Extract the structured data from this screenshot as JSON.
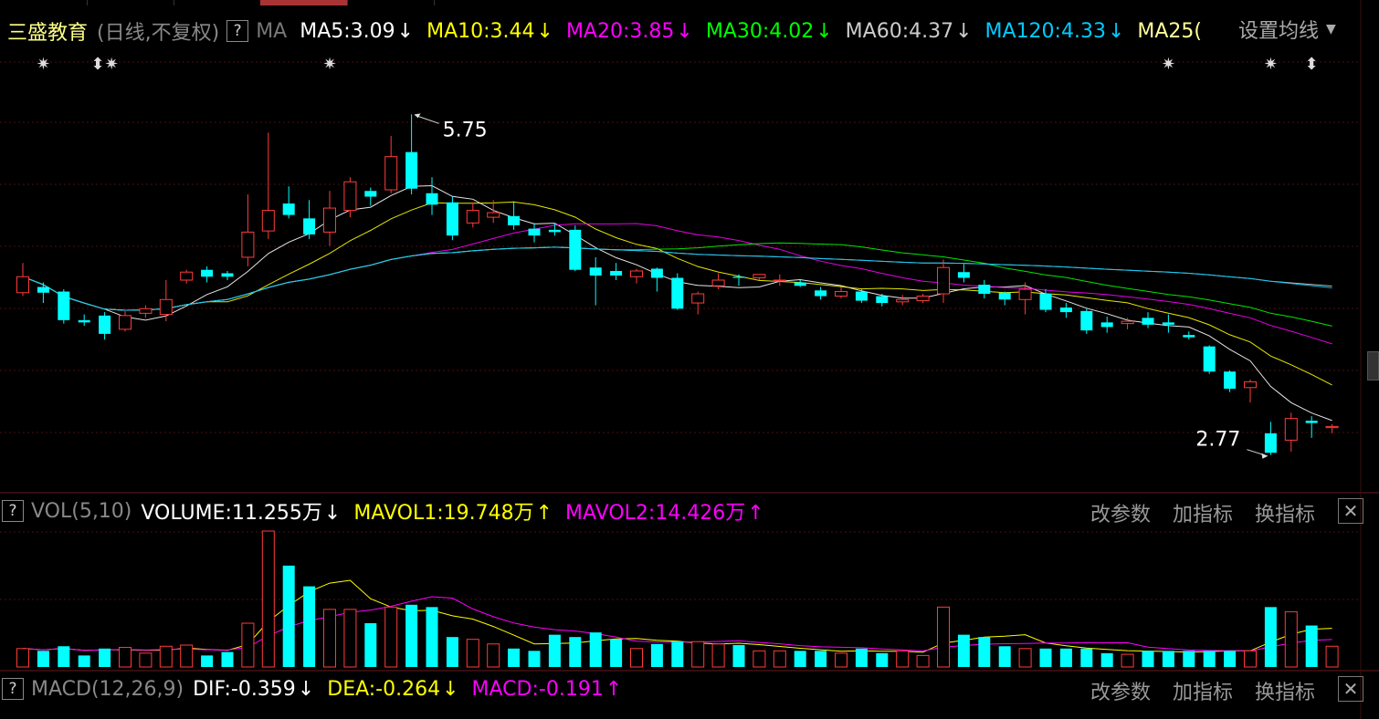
{
  "stock": {
    "name": "三盛教育",
    "period": "(日线,不复权)",
    "help": "?"
  },
  "ma_bar": {
    "label": "MA",
    "items": [
      {
        "text": "MA5:3.09",
        "arrow": "↓",
        "color": "#ffffff"
      },
      {
        "text": "MA10:3.44",
        "arrow": "↓",
        "color": "#ffff00"
      },
      {
        "text": "MA20:3.85",
        "arrow": "↓",
        "color": "#ff00ff"
      },
      {
        "text": "MA30:4.02",
        "arrow": "↓",
        "color": "#00ff00"
      },
      {
        "text": "MA60:4.37",
        "arrow": "↓",
        "color": "#cccccc"
      },
      {
        "text": "MA120:4.33",
        "arrow": "↓",
        "color": "#00ccff"
      },
      {
        "text": "MA25(",
        "arrow": "",
        "color": "#ffff99"
      }
    ],
    "settings": "设置均线"
  },
  "vol_bar": {
    "help": "?",
    "label": "VOL(5,10)",
    "items": [
      {
        "text": "VOLUME:11.255万",
        "arrow": "↓",
        "color": "#ffffff"
      },
      {
        "text": "MAVOL1:19.748万",
        "arrow": "↑",
        "color": "#ffff00"
      },
      {
        "text": "MAVOL2:14.426万",
        "arrow": "↑",
        "color": "#ff00ff"
      }
    ],
    "buttons": [
      "改参数",
      "加指标",
      "换指标"
    ],
    "close": "✕"
  },
  "macd_bar": {
    "help": "?",
    "label": "MACD(12,26,9)",
    "items": [
      {
        "text": "DIF:-0.359",
        "arrow": "↓",
        "color": "#ffffff"
      },
      {
        "text": "DEA:-0.264",
        "arrow": "↓",
        "color": "#ffff00"
      },
      {
        "text": "MACD:-0.191",
        "arrow": "↑",
        "color": "#ff00ff"
      }
    ],
    "buttons": [
      "改参数",
      "加指标",
      "换指标"
    ],
    "close": "✕"
  },
  "colors": {
    "up": "#ff3b3b",
    "down": "#00ffff",
    "grid": "#5a1515",
    "bg": "#000000"
  },
  "event_markers": [
    "✷",
    "⬍✷",
    "✷",
    "✷",
    "✷",
    "⬍"
  ],
  "chart_data": {
    "type": "candlestick",
    "price_ylim": [
      2.6,
      6.0
    ],
    "high_label": "5.75",
    "low_label": "2.77",
    "candles": [
      [
        4.19,
        4.33,
        4.16,
        4.45
      ],
      [
        4.24,
        4.19,
        4.1,
        4.28
      ],
      [
        4.2,
        3.95,
        3.92,
        4.22
      ],
      [
        3.95,
        3.93,
        3.9,
        4.0
      ],
      [
        3.99,
        3.83,
        3.78,
        4.02
      ],
      [
        3.87,
        3.99,
        3.85,
        4.03
      ],
      [
        4.01,
        4.05,
        3.97,
        4.08
      ],
      [
        4.0,
        4.13,
        3.94,
        4.3
      ],
      [
        4.3,
        4.37,
        4.27,
        4.39
      ],
      [
        4.39,
        4.33,
        4.28,
        4.42
      ],
      [
        4.36,
        4.33,
        4.3,
        4.38
      ],
      [
        4.5,
        4.72,
        4.42,
        5.05
      ],
      [
        4.73,
        4.91,
        4.66,
        5.59
      ],
      [
        4.97,
        4.87,
        4.84,
        5.12
      ],
      [
        4.84,
        4.7,
        4.66,
        5.0
      ],
      [
        4.72,
        4.93,
        4.6,
        5.08
      ],
      [
        4.91,
        5.16,
        4.85,
        5.2
      ],
      [
        5.08,
        5.03,
        4.95,
        5.11
      ],
      [
        5.09,
        5.38,
        5.06,
        5.56
      ],
      [
        5.42,
        5.1,
        5.05,
        5.75
      ],
      [
        5.06,
        4.96,
        4.87,
        5.2
      ],
      [
        4.98,
        4.69,
        4.65,
        5.03
      ],
      [
        4.8,
        4.91,
        4.76,
        4.98
      ],
      [
        4.85,
        4.89,
        4.8,
        5.0
      ],
      [
        4.86,
        4.78,
        4.74,
        4.99
      ],
      [
        4.75,
        4.69,
        4.63,
        4.8
      ],
      [
        4.74,
        4.72,
        4.69,
        4.8
      ],
      [
        4.74,
        4.39,
        4.38,
        4.78
      ],
      [
        4.41,
        4.34,
        4.08,
        4.5
      ],
      [
        4.38,
        4.34,
        4.3,
        4.45
      ],
      [
        4.33,
        4.38,
        4.27,
        4.4
      ],
      [
        4.4,
        4.32,
        4.2,
        4.41
      ],
      [
        4.32,
        4.05,
        4.04,
        4.36
      ],
      [
        4.1,
        4.18,
        4.0,
        4.2
      ],
      [
        4.25,
        4.3,
        4.22,
        4.36
      ],
      [
        4.33,
        4.32,
        4.25,
        4.35
      ],
      [
        4.32,
        4.35,
        4.3,
        4.35
      ],
      [
        4.3,
        4.3,
        4.25,
        4.35
      ],
      [
        4.28,
        4.25,
        4.24,
        4.3
      ],
      [
        4.21,
        4.16,
        4.13,
        4.24
      ],
      [
        4.16,
        4.2,
        4.14,
        4.24
      ],
      [
        4.2,
        4.12,
        4.1,
        4.22
      ],
      [
        4.16,
        4.1,
        4.07,
        4.18
      ],
      [
        4.11,
        4.13,
        4.08,
        4.17
      ],
      [
        4.12,
        4.16,
        4.1,
        4.18
      ],
      [
        4.18,
        4.41,
        4.1,
        4.48
      ],
      [
        4.37,
        4.32,
        4.28,
        4.44
      ],
      [
        4.26,
        4.18,
        4.14,
        4.3
      ],
      [
        4.19,
        4.13,
        4.08,
        4.2
      ],
      [
        4.13,
        4.22,
        4.0,
        4.28
      ],
      [
        4.18,
        4.04,
        4.02,
        4.22
      ],
      [
        4.06,
        4.02,
        3.97,
        4.1
      ],
      [
        4.03,
        3.86,
        3.83,
        4.05
      ],
      [
        3.93,
        3.89,
        3.84,
        3.98
      ],
      [
        3.92,
        3.94,
        3.87,
        3.97
      ],
      [
        3.97,
        3.91,
        3.88,
        4.02
      ],
      [
        3.93,
        3.91,
        3.84,
        4.0
      ],
      [
        3.82,
        3.8,
        3.78,
        3.85
      ],
      [
        3.72,
        3.5,
        3.48,
        3.73
      ],
      [
        3.5,
        3.35,
        3.32,
        3.51
      ],
      [
        3.36,
        3.41,
        3.23,
        3.43
      ],
      [
        2.96,
        2.79,
        2.77,
        3.06
      ],
      [
        2.9,
        3.09,
        2.8,
        3.14
      ],
      [
        3.07,
        3.05,
        2.92,
        3.11
      ],
      [
        3.01,
        3.02,
        2.96,
        3.04
      ]
    ],
    "volume_unit": "万",
    "volumes": [
      8.0,
      7.0,
      9.0,
      5.0,
      8.0,
      8.5,
      6.0,
      9.0,
      9.5,
      5.0,
      6.5,
      19.0,
      59.0,
      44.0,
      35.0,
      25.0,
      25.0,
      19.0,
      26.0,
      27.0,
      26.0,
      13.0,
      12.0,
      10.0,
      8.0,
      7.0,
      14.0,
      13.0,
      15.0,
      12.0,
      8.0,
      10.0,
      11.0,
      11.0,
      10.0,
      9.5,
      7.0,
      7.0,
      7.0,
      7.0,
      6.0,
      8.0,
      6.0,
      7.0,
      5.0,
      26.0,
      14.0,
      13.0,
      9.0,
      8.0,
      8.0,
      8.0,
      8.0,
      6.0,
      5.5,
      7.0,
      7.0,
      7.0,
      7.0,
      7.0,
      7.0,
      26.0,
      24.0,
      18.0,
      9.0
    ]
  }
}
